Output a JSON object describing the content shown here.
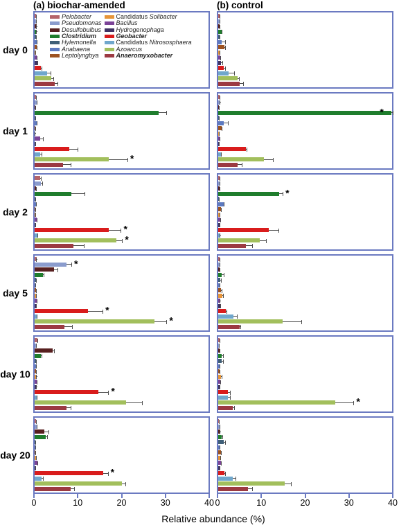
{
  "figure": {
    "x_axis_label": "Relative abundance (%)",
    "panel_a_title": "(a) biochar-amended",
    "panel_b_title": "(b) control",
    "day_labels": [
      "day 0",
      "day 1",
      "day 2",
      "day 5",
      "day 10",
      "day 20"
    ],
    "significance_marker": "*",
    "border_color": "#6b7ac1",
    "error_bar_color": "#4d4d4d"
  },
  "chart_data": {
    "type": "bar",
    "orientation": "horizontal",
    "title": "",
    "xlabel": "Relative abundance (%)",
    "ylabel": "",
    "xlim": [
      0,
      40
    ],
    "xticks": [
      0,
      10,
      20,
      30,
      40
    ],
    "grid": false,
    "legend_position": "inside top of panel a day 0, two columns",
    "taxa": [
      {
        "name": "Pelobacter",
        "prefix": "",
        "bold": false,
        "color": "#b5646a"
      },
      {
        "name": "Pseudomonas",
        "prefix": "",
        "bold": false,
        "color": "#8b9ccd"
      },
      {
        "name": "Desulfobulbus",
        "prefix": "",
        "bold": false,
        "color": "#571f1f"
      },
      {
        "name": "Clostridium",
        "prefix": "",
        "bold": true,
        "color": "#1f7d2d"
      },
      {
        "name": "Hylemonella",
        "prefix": "",
        "bold": false,
        "color": "#3f5f78"
      },
      {
        "name": "Anabaena",
        "prefix": "",
        "bold": false,
        "color": "#5d7ac0"
      },
      {
        "name": "Leptolyngbya",
        "prefix": "",
        "bold": false,
        "color": "#9d5220"
      },
      {
        "name": "Solibacter",
        "prefix": "Candidatus ",
        "bold": false,
        "color": "#e79539"
      },
      {
        "name": "Bacillus",
        "prefix": "",
        "bold": false,
        "color": "#7b4397"
      },
      {
        "name": "Hydrogenophaga",
        "prefix": "",
        "bold": false,
        "color": "#3f3263"
      },
      {
        "name": "Geobacter",
        "prefix": "",
        "bold": true,
        "color": "#d91c1c"
      },
      {
        "name": "Nitrososphaera",
        "prefix": "Candidatus ",
        "bold": false,
        "color": "#70a7cc"
      },
      {
        "name": "Azoarcus",
        "prefix": "",
        "bold": false,
        "color": "#a2bf5c"
      },
      {
        "name": "Anaeromyxobacter",
        "prefix": "",
        "bold": true,
        "color": "#9c3a42"
      }
    ],
    "panels": [
      {
        "id": "a",
        "title": "(a) biochar-amended",
        "rows": [
          {
            "day": "day 0",
            "values": [
              0.3,
              0.3,
              0.4,
              0.4,
              0.3,
              0.5,
              0.5,
              0.2,
              0.5,
              0.6,
              1.4,
              2.8,
              3.8,
              4.6
            ],
            "errors": [
              0.1,
              0.1,
              0.1,
              0.1,
              0.1,
              0.2,
              0.2,
              0.1,
              0.2,
              0.2,
              0.3,
              1.0,
              0.7,
              0.8
            ],
            "sig": []
          },
          {
            "day": "day 1",
            "values": [
              0.3,
              0.5,
              0.2,
              28.5,
              0.2,
              0.4,
              0.2,
              0.1,
              1.2,
              0.2,
              8.0,
              1.2,
              17.0,
              6.5
            ],
            "errors": [
              0.1,
              0.2,
              0.1,
              2.0,
              0.1,
              0.2,
              0.1,
              0.1,
              0.8,
              0.1,
              2.0,
              0.5,
              4.5,
              2.0
            ],
            "sig": [
              12
            ]
          },
          {
            "day": "day 2",
            "values": [
              1.3,
              1.5,
              0.3,
              8.5,
              0.2,
              0.3,
              0.2,
              0.2,
              0.4,
              0.2,
              17.0,
              0.6,
              18.8,
              9.0
            ],
            "errors": [
              0.3,
              0.4,
              0.1,
              3.2,
              0.1,
              0.1,
              0.1,
              0.1,
              0.3,
              0.1,
              3.0,
              0.2,
              1.5,
              2.5
            ],
            "sig": [
              10,
              12
            ]
          },
          {
            "day": "day 5",
            "values": [
              0.4,
              7.3,
              4.4,
              1.9,
              0.3,
              0.2,
              0.3,
              0.3,
              0.4,
              0.3,
              12.2,
              0.4,
              27.5,
              6.8
            ],
            "errors": [
              0.1,
              1.3,
              1.0,
              0.4,
              0.1,
              0.1,
              0.1,
              0.1,
              0.2,
              0.1,
              3.6,
              0.2,
              3.0,
              2.0
            ],
            "sig": [
              1,
              10,
              12
            ]
          },
          {
            "day": "day 10",
            "values": [
              0.6,
              0.3,
              4.1,
              1.4,
              0.3,
              0.3,
              0.3,
              0.4,
              0.4,
              0.4,
              14.7,
              0.5,
              21.0,
              7.4
            ],
            "errors": [
              0.2,
              0.1,
              0.6,
              0.3,
              0.1,
              0.1,
              0.1,
              0.1,
              0.2,
              0.1,
              2.4,
              0.2,
              3.8,
              1.1
            ],
            "sig": [
              10
            ]
          },
          {
            "day": "day 20",
            "values": [
              0.3,
              0.5,
              2.2,
              2.5,
              0.2,
              0.2,
              0.2,
              0.3,
              0.6,
              0.2,
              15.7,
              1.6,
              20.0,
              8.3
            ],
            "errors": [
              0.1,
              0.2,
              1.2,
              0.6,
              0.1,
              0.1,
              0.1,
              0.1,
              0.2,
              0.1,
              1.3,
              0.5,
              1.0,
              1.0
            ],
            "sig": [
              10
            ]
          }
        ]
      },
      {
        "id": "b",
        "title": "(b) control",
        "rows": [
          {
            "day": "day 0",
            "values": [
              0.3,
              0.3,
              0.3,
              0.8,
              0.3,
              0.8,
              1.4,
              0.3,
              0.5,
              0.7,
              1.2,
              2.4,
              4.5,
              5.0
            ],
            "errors": [
              0.1,
              0.1,
              0.1,
              0.2,
              0.1,
              0.9,
              0.3,
              0.1,
              0.2,
              0.4,
              0.5,
              1.4,
              0.5,
              0.9
            ],
            "sig": []
          },
          {
            "day": "day 1",
            "values": [
              0.3,
              0.4,
              0.2,
              39.8,
              0.2,
              1.2,
              0.8,
              0.2,
              0.3,
              0.2,
              6.3,
              0.6,
              10.5,
              4.5
            ],
            "errors": [
              0.1,
              0.1,
              0.1,
              0.5,
              0.1,
              1.2,
              0.2,
              0.1,
              0.1,
              0.1,
              0.4,
              0.2,
              2.2,
              1.0
            ],
            "sig": [
              3
            ]
          },
          {
            "day": "day 2",
            "values": [
              0.3,
              0.3,
              0.3,
              14.0,
              0.2,
              1.2,
              0.6,
              0.3,
              0.5,
              0.3,
              11.7,
              0.4,
              9.5,
              6.4
            ],
            "errors": [
              0.1,
              0.1,
              0.1,
              1.0,
              0.1,
              0.3,
              0.2,
              0.1,
              0.2,
              0.1,
              2.3,
              0.1,
              1.6,
              1.6
            ],
            "sig": [
              3
            ]
          },
          {
            "day": "day 5",
            "values": [
              0.3,
              0.3,
              0.3,
              0.8,
              0.5,
              0.3,
              0.7,
              0.9,
              0.4,
              0.4,
              1.8,
              3.5,
              14.8,
              4.9
            ],
            "errors": [
              0.1,
              0.1,
              0.1,
              0.7,
              0.3,
              0.1,
              0.2,
              0.4,
              0.1,
              0.2,
              0.3,
              1.0,
              4.5,
              0.4
            ],
            "sig": []
          },
          {
            "day": "day 10",
            "values": [
              0.3,
              0.2,
              0.3,
              0.8,
              0.8,
              0.3,
              0.3,
              0.7,
              0.4,
              0.3,
              2.2,
              2.2,
              27.0,
              3.3
            ],
            "errors": [
              0.1,
              0.1,
              0.1,
              0.4,
              0.4,
              0.1,
              0.1,
              0.3,
              0.2,
              0.1,
              0.7,
              0.7,
              4.3,
              0.6
            ],
            "sig": [
              12
            ]
          },
          {
            "day": "day 20",
            "values": [
              0.2,
              0.3,
              0.4,
              0.8,
              1.3,
              0.3,
              0.6,
              0.5,
              0.6,
              0.3,
              1.4,
              3.4,
              15.3,
              6.8
            ],
            "errors": [
              0.1,
              0.1,
              0.1,
              0.3,
              0.5,
              0.1,
              0.2,
              0.2,
              0.2,
              0.1,
              0.3,
              0.7,
              1.6,
              1.2
            ],
            "sig": []
          }
        ]
      }
    ]
  }
}
